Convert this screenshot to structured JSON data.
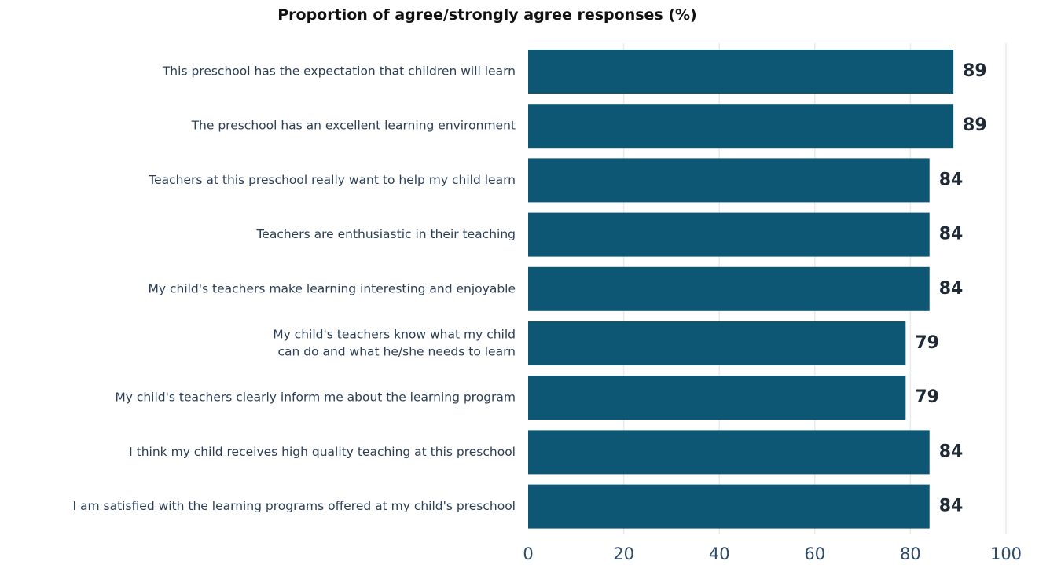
{
  "chart_data": {
    "type": "bar",
    "orientation": "horizontal",
    "title": "Proportion of agree/strongly agree responses (%)",
    "categories": [
      [
        "This preschool has the expectation that children will learn"
      ],
      [
        "The preschool has an excellent learning environment"
      ],
      [
        "Teachers at this preschool really want to help my child learn"
      ],
      [
        "Teachers are enthusiastic in their teaching"
      ],
      [
        "My child's teachers make learning interesting and enjoyable"
      ],
      [
        "My child's teachers know what my child",
        "can do and what he/she needs to learn"
      ],
      [
        "My child's teachers clearly inform me about the learning program"
      ],
      [
        "I think my child receives high quality teaching at this preschool"
      ],
      [
        "I am satisfied with the learning programs offered at my child's preschool"
      ]
    ],
    "values": [
      89,
      89,
      84,
      84,
      84,
      79,
      79,
      84,
      84
    ],
    "xlim": [
      0,
      100
    ],
    "xticks": [
      "0",
      "20",
      "40",
      "60",
      "80",
      "100"
    ],
    "grid": true,
    "bar_color": "#0d5674",
    "grid_color": "#e7ebee"
  }
}
